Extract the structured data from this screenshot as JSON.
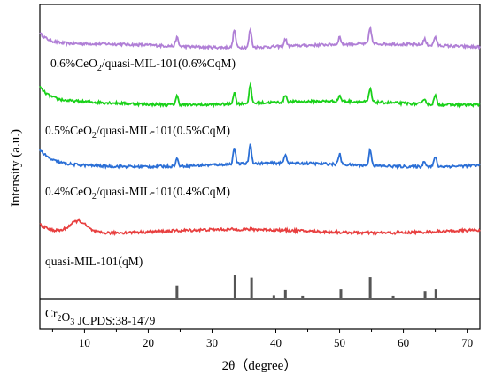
{
  "chart_data": {
    "type": "line",
    "xlabel": "2θ（degree）",
    "ylabel": "Intensity (a.u.)",
    "xlim": [
      3,
      72
    ],
    "x_ticks": [
      10,
      20,
      30,
      40,
      50,
      60,
      70
    ],
    "y_ticks_shown": false,
    "grid": false,
    "legend": "none",
    "series": [
      {
        "label_main": "0.6%CeO",
        "label_sub": "2",
        "label_tail": "/quasi-MIL-101(0.6%CqM)",
        "color": "#b07fd6",
        "baseline": 0.86,
        "start_rise": 0.04,
        "hump": 0.0,
        "peaks": [
          [
            24.5,
            0.03
          ],
          [
            33.5,
            0.06
          ],
          [
            36.0,
            0.06
          ],
          [
            41.5,
            0.025
          ],
          [
            50.0,
            0.025
          ],
          [
            54.8,
            0.055
          ],
          [
            63.3,
            0.02
          ],
          [
            65.0,
            0.03
          ]
        ]
      },
      {
        "label_main": "0.5%CeO",
        "label_sub": "2",
        "label_tail": "/quasi-MIL-101(0.5%CqM)",
        "color": "#1ad11a",
        "baseline": 0.665,
        "start_rise": 0.05,
        "hump": 0.0,
        "peaks": [
          [
            24.5,
            0.03
          ],
          [
            33.5,
            0.04
          ],
          [
            36.0,
            0.06
          ],
          [
            41.5,
            0.025
          ],
          [
            50.0,
            0.02
          ],
          [
            54.8,
            0.045
          ],
          [
            63.3,
            0.02
          ],
          [
            65.0,
            0.03
          ]
        ]
      },
      {
        "label_main": "0.4%CeO",
        "label_sub": "2",
        "label_tail": "/quasi-MIL-101(0.4%CqM)",
        "color": "#2b6fd6",
        "baseline": 0.455,
        "start_rise": 0.05,
        "hump": 0.0,
        "peaks": [
          [
            24.5,
            0.025
          ],
          [
            33.5,
            0.055
          ],
          [
            36.0,
            0.065
          ],
          [
            41.5,
            0.03
          ],
          [
            50.0,
            0.035
          ],
          [
            54.8,
            0.055
          ],
          [
            63.3,
            0.02
          ],
          [
            65.0,
            0.035
          ]
        ]
      },
      {
        "label_main": "quasi-MIL-101(qM)",
        "label_sub": "",
        "label_tail": "",
        "color": "#e84040",
        "baseline": 0.23,
        "start_rise": 0.025,
        "hump": 0.04,
        "peaks": []
      }
    ],
    "reference": {
      "label": "Cr2O3 JCPDS:38-1479",
      "color": "#555555",
      "sticks": [
        [
          24.5,
          0.55
        ],
        [
          33.6,
          1.0
        ],
        [
          36.2,
          0.9
        ],
        [
          39.7,
          0.1
        ],
        [
          41.5,
          0.35
        ],
        [
          44.2,
          0.08
        ],
        [
          50.2,
          0.38
        ],
        [
          54.8,
          0.92
        ],
        [
          58.4,
          0.08
        ],
        [
          63.4,
          0.3
        ],
        [
          65.1,
          0.38
        ]
      ]
    }
  }
}
